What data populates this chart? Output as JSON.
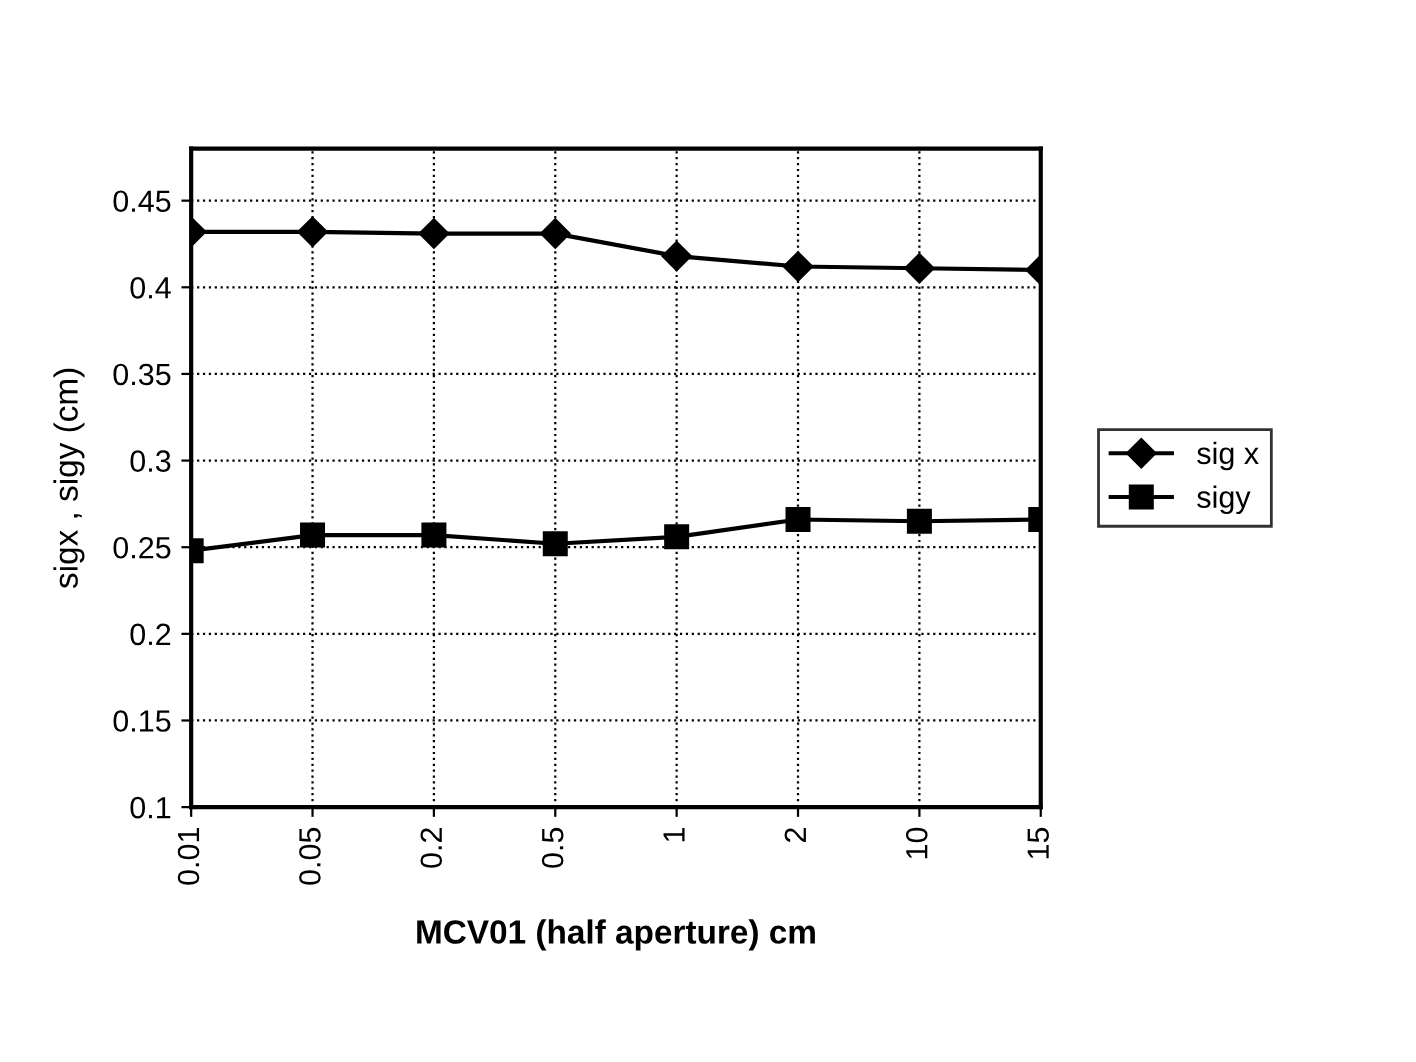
{
  "chart_data": {
    "type": "line",
    "xlabel": "MCV01 (half aperture) cm",
    "ylabel": "sigx , sigy (cm)",
    "categories": [
      "0.01",
      "0.05",
      "0.2",
      "0.5",
      "1",
      "2",
      "10",
      "15"
    ],
    "series": [
      {
        "name": "sig x",
        "color": "#000000",
        "marker": "diamond",
        "values": [
          0.432,
          0.432,
          0.431,
          0.431,
          0.418,
          0.412,
          0.411,
          0.41
        ]
      },
      {
        "name": "sigy",
        "color": "#000000",
        "marker": "square",
        "values": [
          0.248,
          0.257,
          0.257,
          0.252,
          0.256,
          0.266,
          0.265,
          0.266
        ]
      }
    ],
    "ylim": [
      0.1,
      0.48
    ],
    "yticks": [
      0.1,
      0.15,
      0.2,
      0.25,
      0.3,
      0.35,
      0.4,
      0.45
    ],
    "grid": true,
    "legend": "right",
    "line_style": "solid"
  }
}
